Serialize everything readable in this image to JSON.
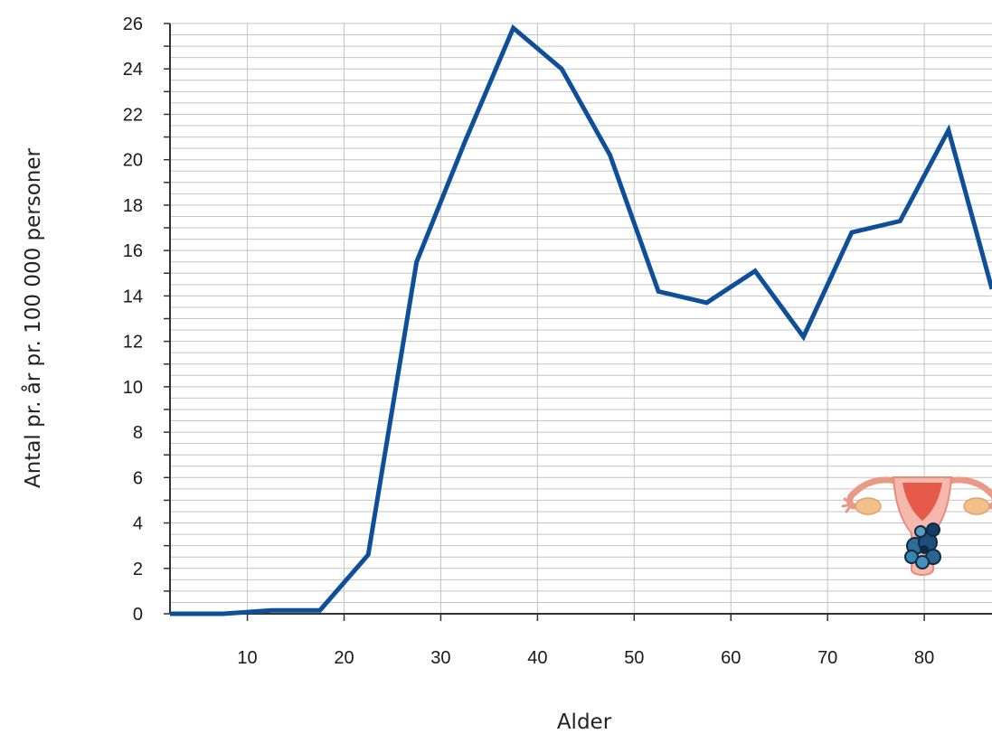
{
  "chart_data": {
    "type": "line",
    "xlabel": "Alder",
    "ylabel": "Antal pr. år pr. 100 000 personer",
    "xlim": [
      2,
      87
    ],
    "ylim": [
      0,
      26
    ],
    "x_ticks": [
      10,
      20,
      30,
      40,
      50,
      60,
      70,
      80
    ],
    "y_ticks": [
      0,
      2,
      4,
      6,
      8,
      10,
      12,
      14,
      16,
      18,
      20,
      22,
      24,
      26
    ],
    "grid": true,
    "series": [
      {
        "color": "#0f4f9a",
        "x": [
          2,
          7.5,
          12.5,
          17.5,
          22.5,
          27.5,
          32.5,
          37.5,
          42.5,
          47.5,
          52.5,
          57.5,
          62.5,
          67.5,
          72.5,
          77.5,
          82.5,
          87
        ],
        "y": [
          0,
          0,
          0.15,
          0.15,
          2.6,
          15.5,
          20.8,
          25.8,
          24.0,
          20.2,
          14.2,
          13.7,
          15.1,
          12.2,
          16.8,
          17.3,
          21.3,
          14.3
        ]
      }
    ],
    "annotation_icon": "uterus-ovaries-tumor-illustration"
  }
}
